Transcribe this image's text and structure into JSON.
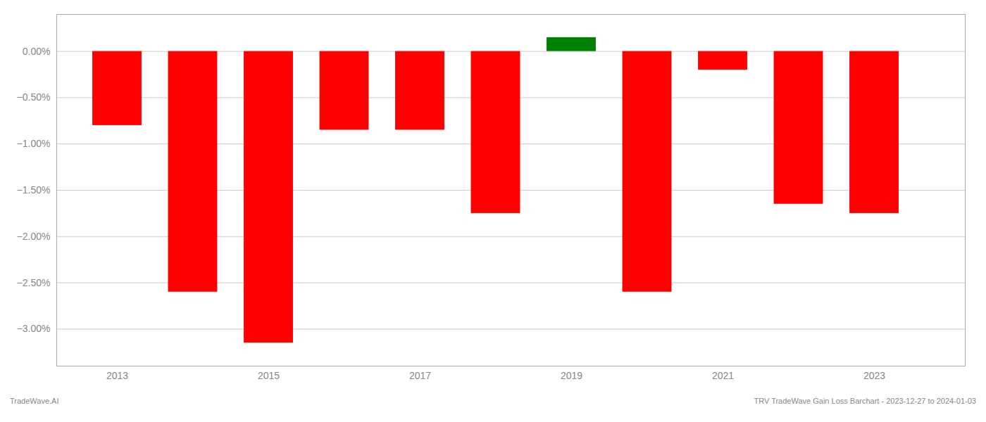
{
  "chart_data": {
    "type": "bar",
    "x": [
      2013,
      2014,
      2015,
      2016,
      2017,
      2018,
      2019,
      2020,
      2021,
      2022,
      2023
    ],
    "values": [
      -0.8,
      -2.6,
      -3.15,
      -0.85,
      -0.85,
      -1.75,
      0.15,
      -2.6,
      -0.2,
      -1.65,
      -1.75
    ],
    "colors": [
      "#ff0000",
      "#ff0000",
      "#ff0000",
      "#ff0000",
      "#ff0000",
      "#ff0000",
      "#008000",
      "#ff0000",
      "#ff0000",
      "#ff0000",
      "#ff0000"
    ],
    "xlim": [
      2012.2,
      2024.2
    ],
    "xticks": [
      2013,
      2015,
      2017,
      2019,
      2021,
      2023
    ],
    "ylim": [
      -3.4,
      0.4
    ],
    "yticks": [
      {
        "value": 0.0,
        "label": "0.00%"
      },
      {
        "value": -0.5,
        "label": "−0.50%"
      },
      {
        "value": -1.0,
        "label": "−1.00%"
      },
      {
        "value": -1.5,
        "label": "−1.50%"
      },
      {
        "value": -2.0,
        "label": "−2.00%"
      },
      {
        "value": -2.5,
        "label": "−2.50%"
      },
      {
        "value": -3.0,
        "label": "−3.00%"
      }
    ],
    "grid": true,
    "annotations": [
      "TradeWave.AI",
      "TRV TradeWave Gain Loss Barchart - 2023-12-27 to 2024-01-03"
    ]
  }
}
